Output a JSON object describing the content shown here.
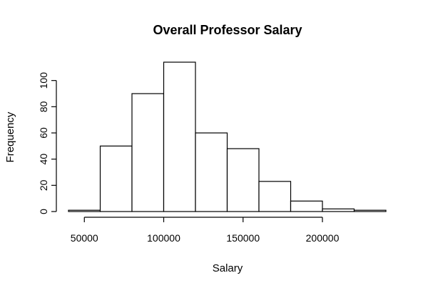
{
  "chart_data": {
    "type": "bar",
    "title": "Overall Professor Salary",
    "xlabel": "Salary",
    "ylabel": "Frequency",
    "bins": [
      {
        "start": 40000,
        "end": 60000,
        "count": 1
      },
      {
        "start": 60000,
        "end": 80000,
        "count": 50
      },
      {
        "start": 80000,
        "end": 100000,
        "count": 90
      },
      {
        "start": 100000,
        "end": 120000,
        "count": 114
      },
      {
        "start": 120000,
        "end": 140000,
        "count": 60
      },
      {
        "start": 140000,
        "end": 160000,
        "count": 48
      },
      {
        "start": 160000,
        "end": 180000,
        "count": 23
      },
      {
        "start": 180000,
        "end": 200000,
        "count": 8
      },
      {
        "start": 200000,
        "end": 220000,
        "count": 2
      },
      {
        "start": 220000,
        "end": 240000,
        "count": 1
      }
    ],
    "x_ticks": [
      50000,
      100000,
      150000,
      200000
    ],
    "x_tick_labels": [
      "50000",
      "100000",
      "150000",
      "200000"
    ],
    "y_ticks": [
      0,
      20,
      40,
      60,
      80,
      100
    ],
    "y_tick_labels": [
      "0",
      "20",
      "40",
      "60",
      "80",
      "100"
    ],
    "xlim": [
      40000,
      240000
    ],
    "ylim": [
      0,
      114
    ],
    "grid": false,
    "legend": "none"
  }
}
